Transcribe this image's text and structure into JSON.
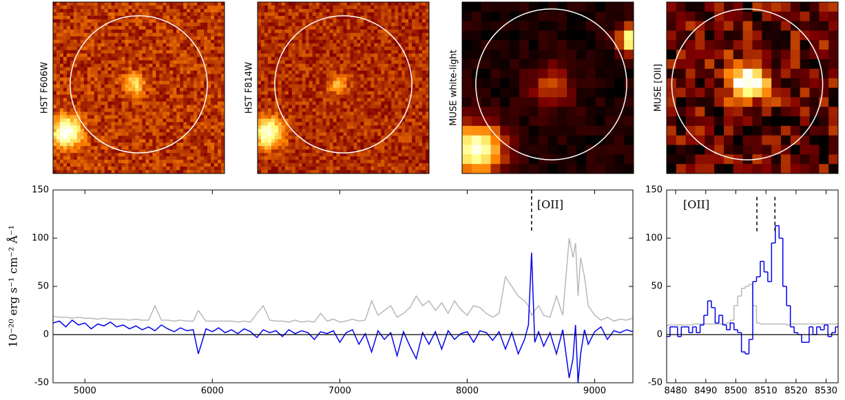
{
  "image_panels": [
    {
      "label": "HST F606W"
    },
    {
      "label": "HST F814W"
    },
    {
      "label": "MUSE white-light"
    },
    {
      "label": "MUSE [OII]"
    }
  ],
  "chart_data": [
    {
      "type": "line",
      "ylabel": "10⁻²⁰ erg s⁻¹ cm⁻² Å⁻¹",
      "xlim": [
        4750,
        9300
      ],
      "xticks": [
        5000,
        6000,
        7000,
        8000,
        9000
      ],
      "ylim": [
        -50,
        150
      ],
      "yticks": [
        -50,
        0,
        50,
        100,
        150
      ],
      "hline": 0,
      "annotations": [
        {
          "text": "[OII]",
          "x": 8505
        }
      ],
      "x": [
        4750,
        4800,
        4850,
        4900,
        4950,
        5000,
        5050,
        5100,
        5150,
        5200,
        5250,
        5300,
        5350,
        5400,
        5450,
        5500,
        5550,
        5600,
        5650,
        5700,
        5750,
        5800,
        5850,
        5890,
        5950,
        6000,
        6050,
        6100,
        6150,
        6200,
        6250,
        6300,
        6350,
        6400,
        6450,
        6500,
        6550,
        6600,
        6650,
        6700,
        6750,
        6800,
        6850,
        6900,
        6950,
        7000,
        7050,
        7100,
        7150,
        7200,
        7250,
        7300,
        7350,
        7400,
        7450,
        7500,
        7550,
        7600,
        7650,
        7700,
        7750,
        7800,
        7850,
        7900,
        7950,
        8000,
        8050,
        8100,
        8150,
        8200,
        8250,
        8300,
        8350,
        8400,
        8450,
        8480,
        8505,
        8530,
        8560,
        8600,
        8650,
        8700,
        8750,
        8800,
        8830,
        8850,
        8870,
        8890,
        8920,
        8950,
        9000,
        9050,
        9100,
        9150,
        9200,
        9250,
        9300
      ],
      "series": [
        {
          "name": "sky",
          "color": "#b8b8b8",
          "values": [
            19,
            18,
            18,
            17,
            18,
            17,
            17,
            16,
            17,
            16,
            16,
            16,
            15,
            16,
            15,
            15,
            30,
            15,
            15,
            14,
            15,
            14,
            14,
            25,
            14,
            14,
            14,
            14,
            14,
            13,
            14,
            13,
            22,
            30,
            15,
            14,
            14,
            13,
            15,
            13,
            14,
            13,
            22,
            14,
            16,
            13,
            14,
            16,
            14,
            15,
            35,
            20,
            25,
            30,
            18,
            22,
            28,
            40,
            30,
            35,
            25,
            33,
            22,
            35,
            26,
            20,
            30,
            28,
            22,
            18,
            22,
            60,
            50,
            40,
            35,
            30,
            20,
            25,
            30,
            20,
            18,
            40,
            20,
            100,
            80,
            95,
            40,
            80,
            60,
            30,
            20,
            15,
            18,
            14,
            16,
            15,
            17
          ]
        },
        {
          "name": "object",
          "color": "#0000ee",
          "values": [
            12,
            14,
            8,
            15,
            10,
            12,
            6,
            11,
            9,
            13,
            8,
            10,
            6,
            9,
            5,
            8,
            4,
            10,
            6,
            3,
            7,
            4,
            5,
            -20,
            6,
            3,
            7,
            2,
            5,
            1,
            6,
            3,
            -3,
            5,
            2,
            4,
            -2,
            5,
            1,
            4,
            2,
            -5,
            3,
            1,
            4,
            -8,
            2,
            5,
            -10,
            1,
            -18,
            4,
            -5,
            2,
            -22,
            3,
            -12,
            -25,
            2,
            -10,
            3,
            -15,
            4,
            -5,
            1,
            3,
            -8,
            4,
            2,
            -6,
            3,
            -15,
            2,
            -20,
            -5,
            10,
            85,
            -8,
            3,
            -12,
            2,
            -20,
            5,
            -45,
            -25,
            10,
            -50,
            -20,
            5,
            -10,
            3,
            8,
            -5,
            4,
            2,
            5,
            3
          ]
        }
      ]
    },
    {
      "type": "step",
      "xlim": [
        8477,
        8534
      ],
      "xticks": [
        8480,
        8490,
        8500,
        8510,
        8520,
        8530
      ],
      "ylim": [
        -50,
        150
      ],
      "yticks": [
        -50,
        0,
        50,
        100,
        150
      ],
      "hline": 0,
      "annotation": "[OII]",
      "vlines": [
        8507,
        8513
      ],
      "x": [
        8477.5,
        8478.75,
        8480,
        8481.25,
        8482.5,
        8483.75,
        8485,
        8486.25,
        8487.5,
        8488.75,
        8490,
        8491.25,
        8492.5,
        8493.75,
        8495,
        8496.25,
        8497.5,
        8498.75,
        8500,
        8501.25,
        8502.5,
        8503.75,
        8505,
        8506.25,
        8507.5,
        8508.75,
        8510,
        8511.25,
        8512.5,
        8513.75,
        8515,
        8516.25,
        8517.5,
        8518.75,
        8520,
        8521.25,
        8522.5,
        8523.75,
        8525,
        8526.25,
        8527.5,
        8528.75,
        8530,
        8531.25,
        8532.5,
        8533.75
      ],
      "series": [
        {
          "name": "sky",
          "color": "#b8b8b8",
          "values": [
            10,
            10,
            10,
            10,
            10,
            10,
            10,
            11,
            11,
            11,
            11,
            11,
            11,
            11,
            11,
            11,
            12,
            15,
            30,
            40,
            48,
            50,
            52,
            30,
            12,
            11,
            11,
            11,
            11,
            11,
            11,
            11,
            10,
            11,
            11,
            11,
            11,
            11,
            11,
            11,
            11,
            11,
            11,
            11,
            11,
            11
          ]
        },
        {
          "name": "object",
          "color": "#0000ee",
          "values": [
            -2,
            8,
            8,
            -2,
            8,
            8,
            2,
            8,
            2,
            10,
            20,
            35,
            28,
            12,
            20,
            10,
            5,
            12,
            5,
            2,
            -18,
            -20,
            -5,
            55,
            60,
            76,
            65,
            55,
            95,
            113,
            100,
            50,
            30,
            8,
            2,
            0,
            -8,
            -8,
            8,
            0,
            8,
            5,
            10,
            -2,
            2,
            8
          ]
        }
      ]
    }
  ]
}
